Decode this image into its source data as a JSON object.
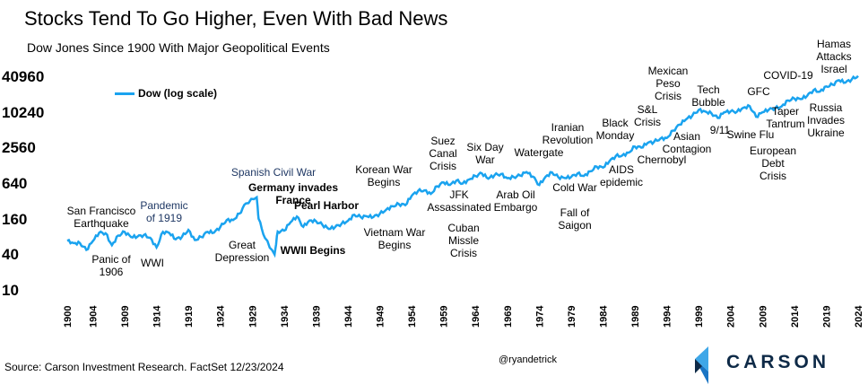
{
  "chart_data": {
    "type": "line",
    "title": "Stocks Tend To Go Higher, Even With Bad News",
    "subtitle": "Dow Jones Since 1900 With Major Geopolitical Events",
    "y_scale": "log",
    "ylim": [
      10,
      40960
    ],
    "yticks": [
      "40960",
      "10240",
      "2560",
      "640",
      "160",
      "40",
      "10"
    ],
    "ytick_values": [
      40960,
      10240,
      2560,
      640,
      160,
      40,
      10
    ],
    "xlim": [
      1900,
      2024
    ],
    "xticks": [
      1900,
      1904,
      1909,
      1914,
      1919,
      1924,
      1929,
      1934,
      1939,
      1944,
      1949,
      1954,
      1959,
      1964,
      1969,
      1974,
      1979,
      1984,
      1989,
      1994,
      1999,
      2004,
      2009,
      2014,
      2019,
      2024
    ],
    "grid": false,
    "legend_placement": "top-left",
    "series": [
      {
        "name": "Dow (log scale)",
        "color": "#1aa3ef",
        "x": [
          1900,
          1901,
          1902,
          1903,
          1904,
          1905,
          1906,
          1907,
          1908,
          1909,
          1910,
          1911,
          1912,
          1913,
          1914,
          1915,
          1916,
          1917,
          1918,
          1919,
          1920,
          1921,
          1922,
          1923,
          1924,
          1925,
          1926,
          1927,
          1928,
          1929.7,
          1930,
          1931,
          1932.5,
          1933,
          1934,
          1935,
          1936,
          1937,
          1938,
          1939,
          1940,
          1941,
          1942,
          1943,
          1944,
          1945,
          1946,
          1947,
          1948,
          1949,
          1950,
          1951,
          1952,
          1953,
          1954,
          1955,
          1956,
          1957,
          1958,
          1959,
          1960,
          1961,
          1962,
          1963,
          1964,
          1965,
          1966,
          1967,
          1968,
          1969,
          1970,
          1971,
          1972,
          1973,
          1974,
          1975,
          1976,
          1977,
          1978,
          1979,
          1980,
          1981,
          1982,
          1983,
          1984,
          1985,
          1986,
          1987,
          1988,
          1989,
          1990,
          1991,
          1992,
          1993,
          1994,
          1995,
          1996,
          1997,
          1998,
          1999,
          2000,
          2001,
          2002,
          2003,
          2004,
          2005,
          2006,
          2007,
          2008,
          2009,
          2010,
          2011,
          2012,
          2013,
          2014,
          2015,
          2016,
          2017,
          2018,
          2019,
          2020,
          2021,
          2022,
          2023,
          2024
        ],
        "values": [
          70,
          64,
          64,
          49,
          69,
          96,
          94,
          59,
          86,
          99,
          81,
          82,
          88,
          79,
          54,
          99,
          95,
          74,
          82,
          107,
          72,
          81,
          99,
          96,
          120,
          157,
          157,
          202,
          300,
          381,
          165,
          78,
          41,
          100,
          104,
          144,
          180,
          121,
          155,
          150,
          131,
          111,
          119,
          136,
          152,
          193,
          177,
          181,
          177,
          200,
          235,
          269,
          292,
          281,
          404,
          488,
          500,
          436,
          584,
          679,
          616,
          731,
          652,
          763,
          874,
          969,
          786,
          905,
          944,
          800,
          839,
          890,
          1020,
          851,
          616,
          852,
          1005,
          831,
          805,
          839,
          964,
          875,
          1047,
          1259,
          1212,
          1547,
          1896,
          1939,
          2169,
          2753,
          2634,
          3169,
          3301,
          3754,
          3834,
          5117,
          6448,
          7908,
          9181,
          11497,
          10787,
          10022,
          8342,
          10454,
          10783,
          10718,
          12463,
          13265,
          8776,
          10428,
          11578,
          12218,
          13104,
          16577,
          17823,
          17425,
          19763,
          24719,
          23327,
          28538,
          30606,
          36338,
          33147,
          37690,
          43000
        ]
      }
    ],
    "annotations": [
      {
        "text": "San Francisco\nEarthquake",
        "color": "#000000"
      },
      {
        "text": "Panic of\n1906",
        "color": "#000000"
      },
      {
        "text": "WWI",
        "color": "#000000"
      },
      {
        "text": "Pandemic\nof 1919",
        "color": "#1f3864"
      },
      {
        "text": "Spanish Civil War",
        "color": "#1f3864"
      },
      {
        "text": "Germany invades\nFrance",
        "color": "#000000"
      },
      {
        "text": "Great\nDepression",
        "color": "#000000"
      },
      {
        "text": "WWII Begins",
        "color": "#000000"
      },
      {
        "text": "Pearl Harbor",
        "color": "#000000"
      },
      {
        "text": "Korean War\nBegins",
        "color": "#000000"
      },
      {
        "text": "Vietnam War\nBegins",
        "color": "#000000"
      },
      {
        "text": "Suez\nCanal\nCrisis",
        "color": "#000000"
      },
      {
        "text": "JFK\nAssassinated",
        "color": "#000000"
      },
      {
        "text": "Cuban\nMissle\nCrisis",
        "color": "#000000"
      },
      {
        "text": "Six Day\nWar",
        "color": "#000000"
      },
      {
        "text": "Arab Oil\nEmbargo",
        "color": "#000000"
      },
      {
        "text": "Watergate",
        "color": "#000000"
      },
      {
        "text": "Iranian\nRevolution",
        "color": "#000000"
      },
      {
        "text": "Cold War",
        "color": "#000000"
      },
      {
        "text": "Fall of\nSaigon",
        "color": "#000000"
      },
      {
        "text": "Black\nMonday",
        "color": "#000000"
      },
      {
        "text": "AIDS\nepidemic",
        "color": "#000000"
      },
      {
        "text": "S&L\nCrisis",
        "color": "#000000"
      },
      {
        "text": "Chernobyl",
        "color": "#000000"
      },
      {
        "text": "Mexican\nPeso\nCrisis",
        "color": "#000000"
      },
      {
        "text": "Asian\nContagion",
        "color": "#000000"
      },
      {
        "text": "Tech\nBubble",
        "color": "#000000"
      },
      {
        "text": "9/11",
        "color": "#000000"
      },
      {
        "text": "GFC",
        "color": "#000000"
      },
      {
        "text": "Swine Flu",
        "color": "#000000"
      },
      {
        "text": "COVID-19",
        "color": "#000000"
      },
      {
        "text": "Taper\nTantrum",
        "color": "#000000"
      },
      {
        "text": "European\nDebt\nCrisis",
        "color": "#000000"
      },
      {
        "text": "Hamas\nAttacks\nIsrael",
        "color": "#000000"
      },
      {
        "text": "Russia\nInvades\nUkraine",
        "color": "#000000"
      }
    ]
  },
  "footer": {
    "source": "Source: Carson Investment Research. FactSet 12/23/2024",
    "handle": "@ryandetrick",
    "brand": "CARSON"
  }
}
